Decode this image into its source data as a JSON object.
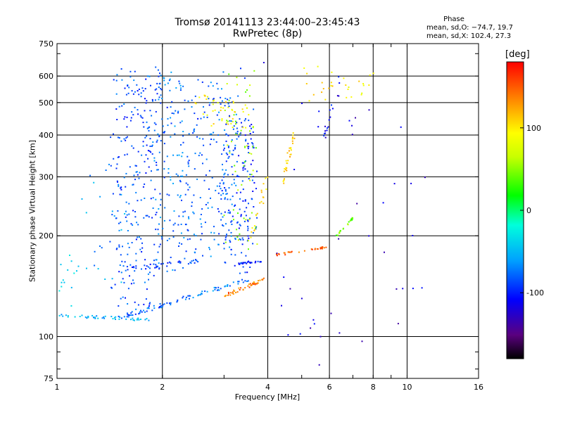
{
  "chart_data": {
    "type": "scatter",
    "title": "Tromsø 20141113 23:44:00–23:45:43",
    "subtitle": "RwPretec (8p)",
    "xlabel": "Frequency [MHz]",
    "ylabel": "Stationary phase Virtual Height [km]",
    "x_scale": "log",
    "y_scale": "log",
    "xlim": [
      1,
      16
    ],
    "ylim": [
      75,
      750
    ],
    "x_ticks": [
      1,
      2,
      4,
      6,
      8,
      10,
      16
    ],
    "y_ticks": [
      75,
      100,
      200,
      300,
      400,
      500,
      600,
      750
    ],
    "grid": true,
    "phase_stats": {
      "heading": "Phase",
      "o_mode": "mean, sd,O: −74.7, 19.7",
      "x_mode": "mean, sd,X: 102.4, 27.3"
    },
    "colorbar": {
      "unit": "[deg]",
      "colormap": "rainbow",
      "range": [
        -180,
        180
      ],
      "ticks": [
        100,
        0,
        -100
      ]
    },
    "point_groups": [
      {
        "f": [
          1.0,
          1.85
        ],
        "h": [
          116,
          112
        ],
        "phase": -55,
        "jitter": 0.02,
        "n": 45
      },
      {
        "f": [
          1.5,
          2.2
        ],
        "h": [
          114,
          127
        ],
        "phase": -80,
        "jitter": 0.03,
        "n": 40
      },
      {
        "f": [
          2.2,
          3.5
        ],
        "h": [
          128,
          148
        ],
        "phase": -70,
        "jitter": 0.03,
        "n": 45
      },
      {
        "f": [
          1.5,
          2.5
        ],
        "h": [
          158,
          168
        ],
        "phase": -95,
        "jitter": 0.03,
        "n": 35
      },
      {
        "f": [
          1.45,
          1.95
        ],
        "h": [
          120,
          620
        ],
        "phase": -85,
        "jitter": 0.09,
        "n": 240
      },
      {
        "f": [
          1.9,
          2.35
        ],
        "h": [
          160,
          610
        ],
        "phase": -75,
        "jitter": 0.09,
        "n": 140
      },
      {
        "f": [
          2.35,
          2.95
        ],
        "h": [
          170,
          580
        ],
        "phase": -78,
        "jitter": 0.09,
        "n": 110
      },
      {
        "f": [
          2.95,
          3.25
        ],
        "h": [
          170,
          520
        ],
        "phase": -82,
        "jitter": 0.08,
        "n": 110
      },
      {
        "f": [
          3.25,
          3.7
        ],
        "h": [
          155,
          460
        ],
        "phase": -95,
        "jitter": 0.08,
        "n": 110
      },
      {
        "f": [
          3.0,
          3.7
        ],
        "h": [
          180,
          620
        ],
        "phase": 55,
        "jitter": 0.08,
        "n": 60
      },
      {
        "f": [
          2.5,
          3.5
        ],
        "h": [
          420,
          520
        ],
        "phase": 95,
        "jitter": 0.06,
        "n": 45
      },
      {
        "f": [
          1.5,
          3.6
        ],
        "h": [
          380,
          620
        ],
        "phase": -90,
        "jitter": 0.08,
        "n": 40
      },
      {
        "f": [
          3.0,
          3.9
        ],
        "h": [
          132,
          148
        ],
        "phase": 140,
        "jitter": 0.025,
        "n": 45
      },
      {
        "f": [
          3.3,
          3.9
        ],
        "h": [
          165,
          168
        ],
        "phase": -98,
        "jitter": 0.01,
        "n": 25
      },
      {
        "f": [
          4.2,
          5.9
        ],
        "h": [
          175,
          185
        ],
        "phase": 150,
        "jitter": 0.015,
        "n": 35
      },
      {
        "f": [
          3.6,
          4.0
        ],
        "h": [
          200,
          300
        ],
        "phase": 100,
        "jitter": 0.05,
        "n": 20
      },
      {
        "f": [
          4.4,
          4.8
        ],
        "h": [
          290,
          410
        ],
        "phase": 110,
        "jitter": 0.04,
        "n": 30
      },
      {
        "f": [
          6.3,
          7.1
        ],
        "h": [
          200,
          230
        ],
        "phase": 42,
        "jitter": 0.015,
        "n": 22
      },
      {
        "f": [
          5.8,
          6.5
        ],
        "h": [
          390,
          600
        ],
        "phase": -110,
        "jitter": 0.05,
        "n": 18
      },
      {
        "f": [
          5.0,
          6.2
        ],
        "h": [
          500,
          640
        ],
        "phase": 100,
        "jitter": 0.06,
        "n": 15
      },
      {
        "f": [
          6.5,
          8.0
        ],
        "h": [
          480,
          620
        ],
        "phase": 95,
        "jitter": 0.06,
        "n": 14
      },
      {
        "f": [
          1.2,
          1.6
        ],
        "h": [
          140,
          320
        ],
        "phase": -60,
        "jitter": 0.12,
        "n": 20
      },
      {
        "f": [
          1.0,
          1.2
        ],
        "h": [
          125,
          170
        ],
        "phase": -40,
        "jitter": 0.08,
        "n": 15
      },
      {
        "f": [
          4.0,
          12.0
        ],
        "h": [
          78,
          700
        ],
        "phase": -120,
        "jitter": 0.3,
        "n": 40
      }
    ]
  }
}
